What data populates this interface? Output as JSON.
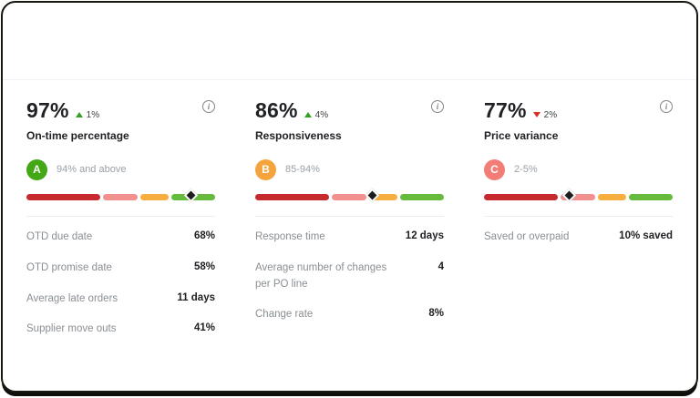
{
  "scale": {
    "segments": [
      {
        "name": "poor",
        "color": "#c62a2f",
        "width_pct": 41
      },
      {
        "name": "fair",
        "color": "#f29090",
        "width_pct": 19
      },
      {
        "name": "good",
        "color": "#f6ae3f",
        "width_pct": 16
      },
      {
        "name": "excellent",
        "color": "#66bb3d",
        "width_pct": 24
      }
    ],
    "marker_color": "#1d1d1d"
  },
  "trend_colors": {
    "up": "#34a124",
    "down": "#d93025"
  },
  "cards": [
    {
      "value": "97%",
      "trend": {
        "direction": "up",
        "label": "1%"
      },
      "title": "On-time percentage",
      "grade": {
        "letter": "A",
        "color": "#43a716",
        "label": "94% and above"
      },
      "marker_position_pct": 88,
      "rows": [
        {
          "label": "OTD due date",
          "value": "68%"
        },
        {
          "label": "OTD promise date",
          "value": "58%"
        },
        {
          "label": "Average late orders",
          "value": "11 days"
        },
        {
          "label": "Supplier move outs",
          "value": "41%"
        }
      ]
    },
    {
      "value": "86%",
      "trend": {
        "direction": "up",
        "label": "4%"
      },
      "title": "Responsiveness",
      "grade": {
        "letter": "B",
        "color": "#f5a33c",
        "label": "85-94%"
      },
      "marker_position_pct": 63,
      "rows": [
        {
          "label": "Response time",
          "value": "12 days"
        },
        {
          "label": "Average number of changes per PO line",
          "value": "4"
        },
        {
          "label": "Change rate",
          "value": "8%"
        }
      ]
    },
    {
      "value": "77%",
      "trend": {
        "direction": "down",
        "label": "2%"
      },
      "title": "Price variance",
      "grade": {
        "letter": "C",
        "color": "#f47c76",
        "label": "2-5%"
      },
      "marker_position_pct": 46,
      "rows": [
        {
          "label": "Saved or overpaid",
          "value": "10% saved"
        }
      ]
    }
  ],
  "info_icon": "i"
}
